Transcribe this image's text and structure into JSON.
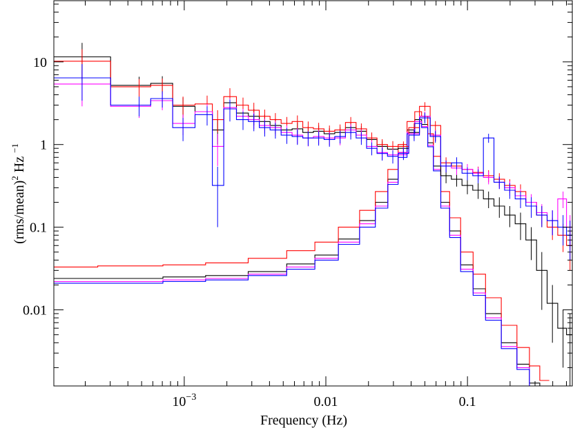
{
  "chart_data": {
    "type": "line",
    "xlabel": "Frequency (Hz)",
    "ylabel_parts": [
      "(rms/mean)",
      "2",
      " Hz ",
      "−1"
    ],
    "x_scale": "log",
    "y_scale": "log",
    "xlim": [
      0.00012,
      0.55
    ],
    "ylim": [
      0.0012,
      55
    ],
    "x_ticks": [
      {
        "value": 0.001,
        "base": "10",
        "exp": "−3"
      },
      {
        "value": 0.01,
        "label": "0.01"
      },
      {
        "value": 0.1,
        "label": "0.1"
      }
    ],
    "y_ticks": [
      {
        "value": 10,
        "label": "10"
      },
      {
        "value": 1,
        "label": "1"
      },
      {
        "value": 0.1,
        "label": "0.1"
      },
      {
        "value": 0.01,
        "label": "0.01"
      }
    ],
    "legend": "none",
    "grid": false,
    "series": [
      {
        "color": "#000000",
        "kind": "data",
        "x": [
          0.00019,
          0.00048,
          0.0007,
          0.00098,
          0.00145,
          0.00172,
          0.0021,
          0.0026,
          0.0031,
          0.0037,
          0.0044,
          0.0053,
          0.0063,
          0.0075,
          0.0089,
          0.0106,
          0.0126,
          0.015,
          0.0178,
          0.0211,
          0.025,
          0.0297,
          0.0353,
          0.042,
          0.05,
          0.0594,
          0.0706,
          0.0839,
          0.0998,
          0.119,
          0.141,
          0.168,
          0.199,
          0.237,
          0.282,
          0.335,
          0.398,
          0.473,
          0.53
        ],
        "y": [
          11.5,
          5.2,
          5.5,
          2.9,
          2.5,
          1.5,
          3.2,
          2.4,
          2.2,
          1.9,
          1.7,
          1.5,
          1.55,
          1.4,
          1.45,
          1.35,
          1.4,
          1.6,
          1.45,
          1.15,
          0.95,
          0.88,
          0.9,
          1.4,
          2.2,
          1.3,
          0.42,
          0.38,
          0.32,
          0.28,
          0.22,
          0.18,
          0.14,
          0.11,
          0.07,
          0.03,
          0.012,
          0.006,
          0.005
        ],
        "err": [
          5.5,
          1.4,
          1.2,
          0.8,
          0.7,
          0.5,
          0.9,
          0.6,
          0.5,
          0.4,
          0.35,
          0.3,
          0.3,
          0.25,
          0.25,
          0.22,
          0.22,
          0.25,
          0.22,
          0.18,
          0.15,
          0.13,
          0.13,
          0.2,
          0.3,
          0.2,
          0.08,
          0.07,
          0.07,
          0.06,
          0.05,
          0.05,
          0.04,
          0.04,
          0.03,
          0.02,
          0.008,
          0.004,
          0.004
        ]
      },
      {
        "color": "#ff0000",
        "kind": "data",
        "x": [
          0.00019,
          0.00048,
          0.0007,
          0.00098,
          0.00145,
          0.00172,
          0.0021,
          0.0026,
          0.0031,
          0.0037,
          0.0044,
          0.0053,
          0.0063,
          0.0075,
          0.0089,
          0.0106,
          0.0126,
          0.015,
          0.0178,
          0.0211,
          0.025,
          0.0297,
          0.0353,
          0.042,
          0.05,
          0.0594,
          0.0706,
          0.0839,
          0.0998,
          0.119,
          0.141,
          0.168,
          0.199,
          0.237,
          0.282,
          0.335,
          0.398,
          0.473,
          0.53
        ],
        "y": [
          10.2,
          5.0,
          5.2,
          3.0,
          3.1,
          2.0,
          3.8,
          3.0,
          2.6,
          2.2,
          2.0,
          1.8,
          1.9,
          1.6,
          1.55,
          1.45,
          1.5,
          1.85,
          1.55,
          1.2,
          1.0,
          0.95,
          0.95,
          1.6,
          2.9,
          1.7,
          0.6,
          0.55,
          0.5,
          0.46,
          0.42,
          0.38,
          0.32,
          0.27,
          0.2,
          0.14,
          0.1,
          0.08,
          0.06
        ],
        "err": [
          4.0,
          1.2,
          1.1,
          0.8,
          0.8,
          0.6,
          1.0,
          0.7,
          0.6,
          0.45,
          0.4,
          0.35,
          0.35,
          0.3,
          0.28,
          0.25,
          0.25,
          0.3,
          0.25,
          0.2,
          0.16,
          0.15,
          0.14,
          0.22,
          0.35,
          0.22,
          0.1,
          0.09,
          0.08,
          0.08,
          0.07,
          0.07,
          0.06,
          0.06,
          0.05,
          0.04,
          0.03,
          0.03,
          0.03
        ]
      },
      {
        "color": "#ff00ff",
        "kind": "data",
        "x": [
          0.00019,
          0.00048,
          0.0007,
          0.00098,
          0.00145,
          0.00172,
          0.0021,
          0.0026,
          0.0031,
          0.0037,
          0.0044,
          0.0053,
          0.0063,
          0.0075,
          0.0089,
          0.0106,
          0.0126,
          0.015,
          0.0178,
          0.0211,
          0.025,
          0.0297,
          0.0353,
          0.042,
          0.05,
          0.0594,
          0.0706,
          0.0839,
          0.0998,
          0.119,
          0.141,
          0.168,
          0.199,
          0.237,
          0.282,
          0.335,
          0.398,
          0.473,
          0.53
        ],
        "y": [
          5.4,
          2.9,
          3.4,
          1.8,
          2.5,
          0.95,
          2.8,
          2.2,
          2.0,
          1.7,
          1.6,
          1.4,
          1.3,
          1.2,
          1.25,
          1.2,
          1.2,
          1.5,
          1.3,
          0.95,
          0.8,
          0.75,
          0.8,
          1.35,
          2.2,
          1.3,
          0.55,
          0.52,
          0.5,
          0.45,
          0.4,
          0.35,
          0.3,
          0.24,
          0.2,
          0.15,
          0.12,
          0.22,
          0.1
        ],
        "err": [
          2.5,
          0.8,
          0.8,
          0.5,
          0.6,
          0.4,
          0.8,
          0.5,
          0.45,
          0.35,
          0.32,
          0.3,
          0.28,
          0.25,
          0.24,
          0.22,
          0.22,
          0.26,
          0.22,
          0.17,
          0.14,
          0.13,
          0.13,
          0.2,
          0.3,
          0.2,
          0.09,
          0.09,
          0.08,
          0.08,
          0.07,
          0.06,
          0.06,
          0.05,
          0.05,
          0.04,
          0.04,
          0.05,
          0.04
        ]
      },
      {
        "color": "#0000ff",
        "kind": "data",
        "x": [
          0.00019,
          0.00048,
          0.0007,
          0.00098,
          0.00145,
          0.00172,
          0.0021,
          0.0026,
          0.0031,
          0.0037,
          0.0044,
          0.0053,
          0.0063,
          0.0075,
          0.0089,
          0.0106,
          0.0126,
          0.015,
          0.0178,
          0.0211,
          0.025,
          0.0297,
          0.0353,
          0.042,
          0.05,
          0.0594,
          0.0706,
          0.0839,
          0.0998,
          0.119,
          0.141,
          0.168,
          0.199,
          0.237,
          0.282,
          0.335,
          0.398,
          0.473,
          0.53
        ],
        "y": [
          6.4,
          3.0,
          3.6,
          1.6,
          2.3,
          0.32,
          2.7,
          2.0,
          1.9,
          1.6,
          1.5,
          1.3,
          1.25,
          1.2,
          1.2,
          1.15,
          1.25,
          1.4,
          1.2,
          0.9,
          0.78,
          0.72,
          0.78,
          1.3,
          2.1,
          1.25,
          0.55,
          0.6,
          0.45,
          0.42,
          1.2,
          0.35,
          0.28,
          0.22,
          0.18,
          0.14,
          0.12,
          0.1,
          0.08
        ],
        "err": [
          3.0,
          0.8,
          0.8,
          0.5,
          0.6,
          0.22,
          0.8,
          0.5,
          0.45,
          0.35,
          0.32,
          0.28,
          0.26,
          0.24,
          0.23,
          0.21,
          0.22,
          0.25,
          0.21,
          0.16,
          0.14,
          0.13,
          0.13,
          0.2,
          0.3,
          0.2,
          0.09,
          0.1,
          0.08,
          0.08,
          0.15,
          0.06,
          0.06,
          0.05,
          0.05,
          0.04,
          0.04,
          0.04,
          0.04
        ]
      },
      {
        "color": "#000000",
        "kind": "model",
        "x": [
          0.00012,
          0.0005,
          0.001,
          0.002,
          0.004,
          0.007,
          0.01,
          0.015,
          0.02,
          0.025,
          0.03,
          0.035,
          0.04,
          0.045,
          0.05,
          0.055,
          0.06,
          0.07,
          0.08,
          0.1,
          0.12,
          0.15,
          0.2,
          0.25,
          0.3,
          0.35
        ],
        "y": [
          0.024,
          0.024,
          0.025,
          0.026,
          0.029,
          0.036,
          0.046,
          0.072,
          0.12,
          0.2,
          0.38,
          0.8,
          1.5,
          2.0,
          1.75,
          1.05,
          0.55,
          0.2,
          0.09,
          0.035,
          0.018,
          0.009,
          0.004,
          0.0022,
          0.0013,
          0.0012
        ]
      },
      {
        "color": "#ff0000",
        "kind": "model",
        "x": [
          0.00012,
          0.0005,
          0.001,
          0.002,
          0.004,
          0.007,
          0.01,
          0.015,
          0.02,
          0.025,
          0.03,
          0.035,
          0.04,
          0.045,
          0.05,
          0.055,
          0.06,
          0.07,
          0.08,
          0.1,
          0.12,
          0.15,
          0.2,
          0.25,
          0.3,
          0.35
        ],
        "y": [
          0.033,
          0.034,
          0.035,
          0.037,
          0.042,
          0.052,
          0.066,
          0.1,
          0.16,
          0.27,
          0.5,
          1.0,
          1.9,
          2.5,
          2.2,
          1.35,
          0.72,
          0.27,
          0.13,
          0.05,
          0.027,
          0.014,
          0.0065,
          0.0035,
          0.0021,
          0.0014
        ]
      },
      {
        "color": "#ff00ff",
        "kind": "model",
        "x": [
          0.00012,
          0.0005,
          0.001,
          0.002,
          0.004,
          0.007,
          0.01,
          0.015,
          0.02,
          0.025,
          0.03,
          0.035,
          0.04,
          0.045,
          0.05,
          0.055,
          0.06,
          0.07,
          0.08,
          0.1,
          0.12,
          0.15,
          0.2,
          0.25,
          0.3,
          0.35
        ],
        "y": [
          0.022,
          0.022,
          0.023,
          0.024,
          0.027,
          0.033,
          0.042,
          0.066,
          0.11,
          0.18,
          0.35,
          0.75,
          1.4,
          1.9,
          1.65,
          0.98,
          0.5,
          0.18,
          0.08,
          0.031,
          0.016,
          0.008,
          0.0036,
          0.002,
          0.0012,
          0.0011
        ]
      },
      {
        "color": "#0000ff",
        "kind": "model",
        "x": [
          0.00012,
          0.0005,
          0.001,
          0.002,
          0.004,
          0.007,
          0.01,
          0.015,
          0.02,
          0.025,
          0.03,
          0.035,
          0.04,
          0.045,
          0.05,
          0.055,
          0.06,
          0.07,
          0.08,
          0.1,
          0.12,
          0.15,
          0.2,
          0.25,
          0.3,
          0.35
        ],
        "y": [
          0.021,
          0.021,
          0.022,
          0.023,
          0.026,
          0.031,
          0.04,
          0.062,
          0.1,
          0.17,
          0.33,
          0.7,
          1.35,
          1.8,
          1.6,
          0.94,
          0.48,
          0.17,
          0.075,
          0.029,
          0.015,
          0.0075,
          0.0034,
          0.0019,
          0.0012,
          0.0011
        ]
      }
    ]
  }
}
